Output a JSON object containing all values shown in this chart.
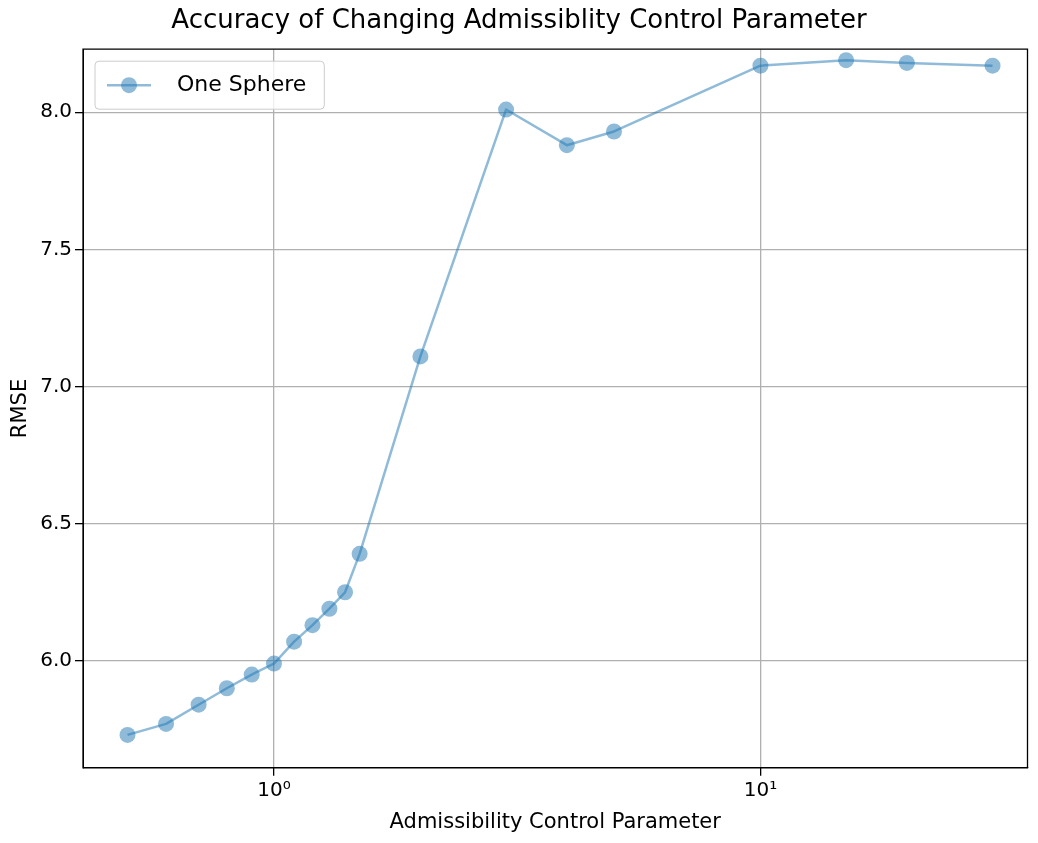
{
  "chart_data": {
    "type": "line",
    "title": "Accuracy of Changing Admissiblity Control Parameter",
    "xlabel": "Admissibility Control Parameter",
    "ylabel": "RMSE",
    "x": [
      0.5,
      0.6,
      0.7,
      0.8,
      0.9,
      1.0,
      1.1,
      1.2,
      1.3,
      1.4,
      1.5,
      2,
      3,
      4,
      5,
      10,
      15,
      20,
      30
    ],
    "series": [
      {
        "name": "One Sphere",
        "color": "#1f77b4",
        "values": [
          5.73,
          5.77,
          5.84,
          5.9,
          5.95,
          5.99,
          6.07,
          6.13,
          6.19,
          6.25,
          6.39,
          7.11,
          8.01,
          7.88,
          7.93,
          8.17,
          8.19,
          8.18,
          8.17
        ]
      }
    ],
    "log": "x",
    "xlim": [
      0.405,
      35.4
    ],
    "xticks": [
      {
        "value": 1,
        "label": "10⁰"
      },
      {
        "value": 10,
        "label": "10¹"
      }
    ],
    "ylim": [
      5.61,
      8.23
    ],
    "yticks": [
      {
        "value": 6,
        "label": "6.0"
      },
      {
        "value": 6.5,
        "label": "6.5"
      },
      {
        "value": 7,
        "label": "7.0"
      },
      {
        "value": 7.5,
        "label": "7.5"
      },
      {
        "value": 8,
        "label": "8.0"
      }
    ],
    "grid": true,
    "legend": "top left",
    "marker": "circle",
    "line_style": "solid"
  }
}
